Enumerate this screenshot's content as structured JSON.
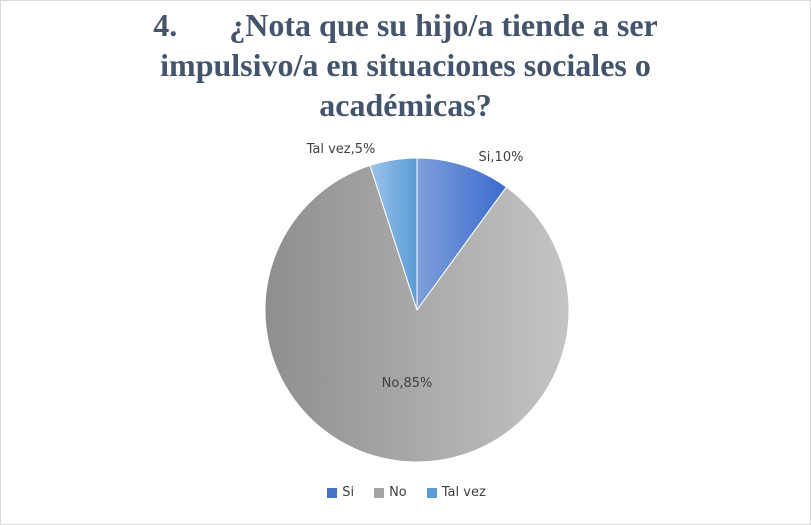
{
  "chart_data": {
    "type": "pie",
    "title_number": "4.",
    "title_lines": [
      "¿Nota que su hijo/a tiende a ser",
      "impulsivo/a en situaciones sociales o",
      "académicas?"
    ],
    "categories": [
      "Si",
      "No",
      "Tal vez"
    ],
    "values": [
      10,
      85,
      5
    ],
    "data_labels": [
      "Si,10%",
      "No,85%",
      "Tal vez,5%"
    ],
    "colors": [
      "#4472c4",
      "#a5a5a5",
      "#5b9bd5"
    ],
    "legend_position": "bottom"
  }
}
